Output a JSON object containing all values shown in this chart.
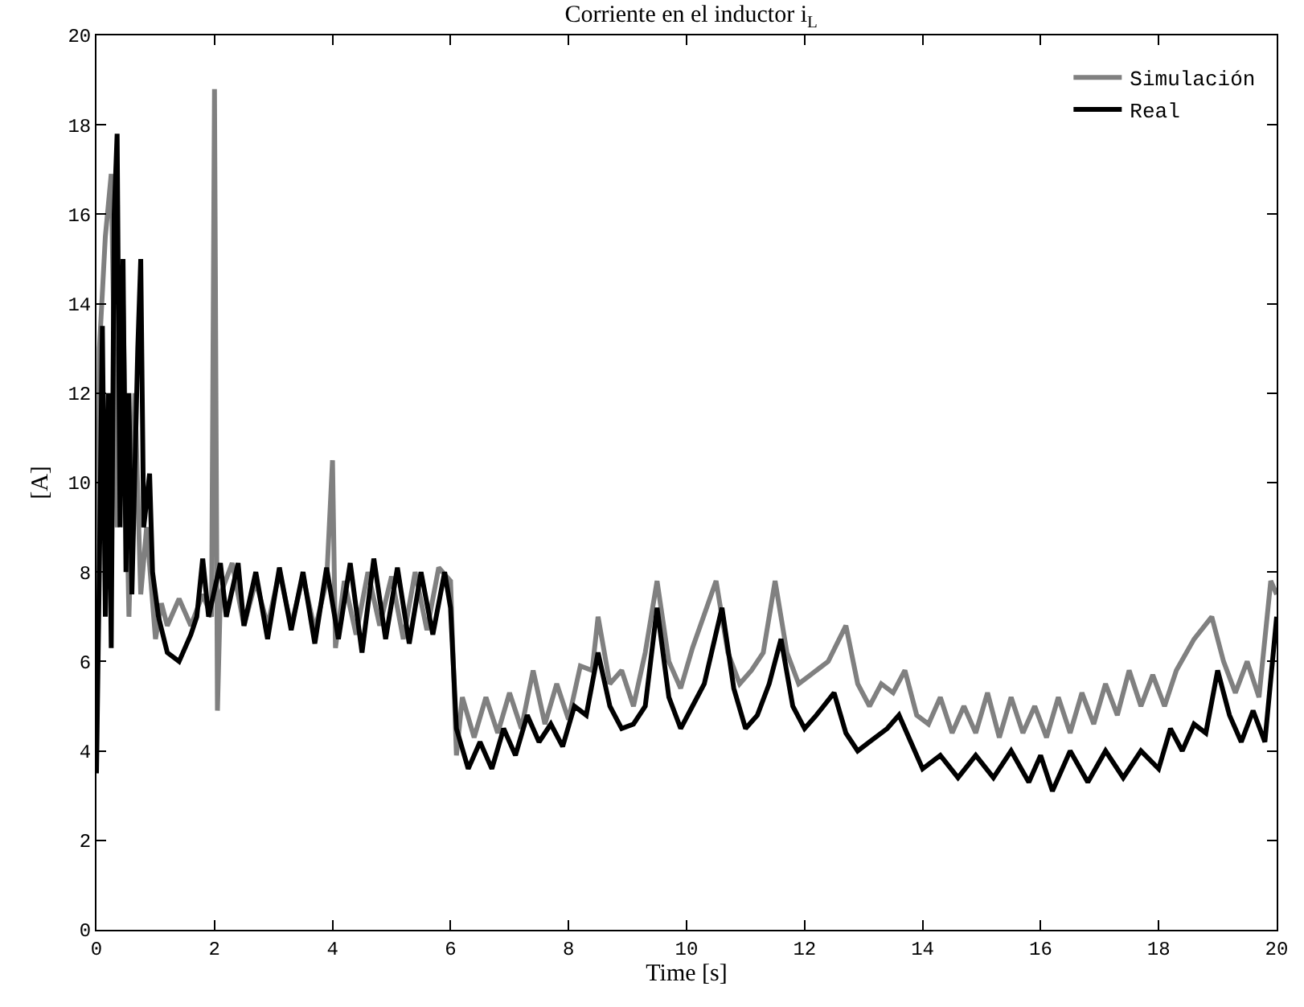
{
  "chart_data": {
    "type": "line",
    "title": "Corriente en el inductor i$_{L}$",
    "xlabel": "Time [s]",
    "ylabel": "[A]",
    "xlim": [
      0,
      20
    ],
    "ylim": [
      0,
      20
    ],
    "xticks": [
      0,
      2,
      4,
      6,
      8,
      10,
      12,
      14,
      16,
      18,
      20
    ],
    "yticks": [
      0,
      2,
      4,
      6,
      8,
      10,
      12,
      14,
      16,
      18,
      20
    ],
    "grid": false,
    "legend": "top right",
    "marker": "none",
    "line_style": "solid",
    "series": [
      {
        "name": "Simulación",
        "color": "#808080",
        "x": [
          0,
          0.05,
          0.15,
          0.25,
          0.35,
          0.45,
          0.55,
          0.65,
          0.75,
          0.85,
          1.0,
          1.1,
          1.2,
          1.4,
          1.6,
          1.8,
          1.95,
          2.0,
          2.05,
          2.1,
          2.3,
          2.5,
          2.7,
          2.9,
          3.1,
          3.3,
          3.5,
          3.7,
          3.9,
          4.0,
          4.05,
          4.2,
          4.4,
          4.6,
          4.8,
          5.0,
          5.2,
          5.4,
          5.6,
          5.8,
          6.0,
          6.1,
          6.2,
          6.4,
          6.6,
          6.8,
          7.0,
          7.2,
          7.4,
          7.6,
          7.8,
          8.0,
          8.2,
          8.4,
          8.5,
          8.7,
          8.9,
          9.1,
          9.3,
          9.5,
          9.7,
          9.9,
          10.1,
          10.5,
          10.7,
          10.9,
          11.1,
          11.3,
          11.5,
          11.7,
          11.9,
          12.1,
          12.4,
          12.7,
          12.9,
          13.1,
          13.3,
          13.5,
          13.7,
          13.9,
          14.1,
          14.3,
          14.5,
          14.7,
          14.9,
          15.1,
          15.3,
          15.5,
          15.7,
          15.9,
          16.1,
          16.3,
          16.5,
          16.7,
          16.9,
          17.1,
          17.3,
          17.5,
          17.7,
          17.9,
          18.1,
          18.3,
          18.6,
          18.9,
          19.1,
          19.3,
          19.5,
          19.7,
          19.9,
          20
        ],
        "values": [
          3.8,
          13,
          15.5,
          16.9,
          9,
          14,
          7,
          12,
          7.5,
          9,
          6.5,
          7.3,
          6.8,
          7.4,
          6.8,
          7.5,
          7.0,
          18.8,
          4.9,
          7.5,
          8.2,
          6.8,
          7.8,
          6.8,
          8.0,
          6.8,
          7.9,
          6.7,
          7.8,
          10.5,
          6.3,
          7.8,
          6.6,
          8.0,
          6.8,
          7.9,
          6.5,
          8.0,
          6.7,
          8.1,
          7.8,
          3.9,
          5.2,
          4.3,
          5.2,
          4.4,
          5.3,
          4.5,
          5.8,
          4.6,
          5.5,
          4.7,
          5.9,
          5.8,
          7.0,
          5.5,
          5.8,
          5.0,
          6.2,
          7.8,
          6.0,
          5.4,
          6.3,
          7.8,
          6.2,
          5.5,
          5.8,
          6.2,
          7.8,
          6.2,
          5.5,
          5.7,
          6.0,
          6.8,
          5.5,
          5.0,
          5.5,
          5.3,
          5.8,
          4.8,
          4.6,
          5.2,
          4.4,
          5.0,
          4.4,
          5.3,
          4.3,
          5.2,
          4.4,
          5.0,
          4.3,
          5.2,
          4.4,
          5.3,
          4.6,
          5.5,
          4.8,
          5.8,
          5.0,
          5.7,
          5.0,
          5.8,
          6.5,
          7.0,
          6.0,
          5.3,
          6.0,
          5.2,
          7.8,
          7.5
        ]
      },
      {
        "name": "Real",
        "color": "#000000",
        "x": [
          0,
          0.05,
          0.1,
          0.15,
          0.2,
          0.25,
          0.3,
          0.35,
          0.4,
          0.45,
          0.5,
          0.55,
          0.6,
          0.7,
          0.75,
          0.8,
          0.9,
          0.95,
          1.05,
          1.2,
          1.4,
          1.6,
          1.7,
          1.8,
          1.9,
          2.1,
          2.2,
          2.4,
          2.5,
          2.7,
          2.9,
          3.1,
          3.3,
          3.5,
          3.7,
          3.9,
          4.1,
          4.3,
          4.5,
          4.7,
          4.9,
          5.1,
          5.3,
          5.5,
          5.7,
          5.9,
          6.0,
          6.1,
          6.3,
          6.5,
          6.7,
          6.9,
          7.1,
          7.3,
          7.5,
          7.7,
          7.9,
          8.1,
          8.3,
          8.5,
          8.7,
          8.9,
          9.1,
          9.3,
          9.5,
          9.7,
          9.9,
          10.1,
          10.3,
          10.6,
          10.8,
          11.0,
          11.2,
          11.4,
          11.6,
          11.8,
          12.0,
          12.2,
          12.5,
          12.7,
          12.9,
          13.1,
          13.4,
          13.6,
          13.8,
          14.0,
          14.3,
          14.6,
          14.9,
          15.2,
          15.5,
          15.8,
          16.0,
          16.2,
          16.5,
          16.8,
          17.1,
          17.4,
          17.7,
          18.0,
          18.2,
          18.4,
          18.6,
          18.8,
          19.0,
          19.2,
          19.4,
          19.6,
          19.8,
          20
        ],
        "values": [
          3.5,
          8.2,
          13.5,
          7,
          12,
          6.3,
          16,
          17.8,
          9,
          15,
          8,
          12,
          7.5,
          13,
          15,
          9,
          10.2,
          8,
          7,
          6.2,
          6.0,
          6.6,
          7.0,
          8.3,
          7.0,
          8.2,
          7.0,
          8.2,
          6.8,
          8.0,
          6.5,
          8.1,
          6.7,
          8.0,
          6.4,
          8.1,
          6.5,
          8.2,
          6.2,
          8.3,
          6.5,
          8.1,
          6.4,
          8.0,
          6.6,
          8.0,
          7.2,
          4.5,
          3.6,
          4.2,
          3.6,
          4.5,
          3.9,
          4.8,
          4.2,
          4.6,
          4.1,
          5.0,
          4.8,
          6.2,
          5.0,
          4.5,
          4.6,
          5.0,
          7.2,
          5.2,
          4.5,
          5.0,
          5.5,
          7.2,
          5.4,
          4.5,
          4.8,
          5.5,
          6.5,
          5.0,
          4.5,
          4.8,
          5.3,
          4.4,
          4.0,
          4.2,
          4.5,
          4.8,
          4.2,
          3.6,
          3.9,
          3.4,
          3.9,
          3.4,
          4.0,
          3.3,
          3.9,
          3.1,
          4.0,
          3.3,
          4.0,
          3.4,
          4.0,
          3.6,
          4.5,
          4.0,
          4.6,
          4.4,
          5.8,
          4.8,
          4.2,
          4.9,
          4.2,
          7.0
        ]
      }
    ]
  }
}
